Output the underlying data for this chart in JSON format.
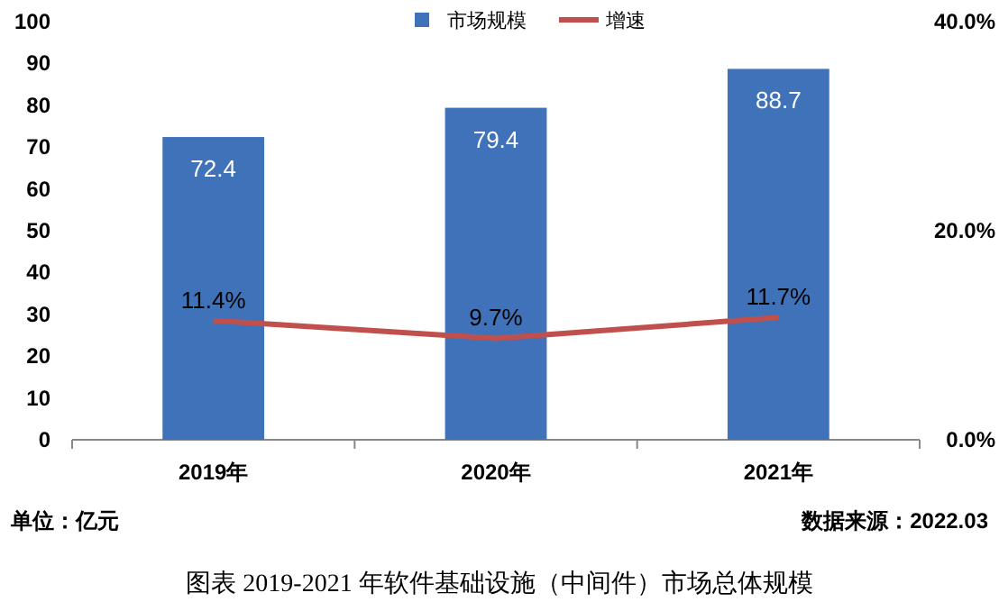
{
  "chart_data": {
    "type": "bar",
    "categories": [
      "2019年",
      "2020年",
      "2021年"
    ],
    "series": [
      {
        "name": "市场规模",
        "color": "#3f72b8",
        "values": [
          72.4,
          79.4,
          88.7
        ],
        "value_labels": [
          "72.4",
          "79.4",
          "88.7"
        ]
      },
      {
        "name": "增速",
        "type": "line",
        "axis": "y2",
        "color": "#c0504d",
        "values": [
          11.4,
          9.7,
          11.7
        ],
        "value_labels": [
          "11.4%",
          "9.7%",
          "11.7%"
        ]
      }
    ],
    "ylim": [
      0,
      100
    ],
    "yticks": [
      0,
      10,
      20,
      30,
      40,
      50,
      60,
      70,
      80,
      90,
      100
    ],
    "y2lim": [
      0,
      40
    ],
    "y2ticks": [
      {
        "value": 0,
        "label": "0.0%"
      },
      {
        "value": 20,
        "label": "20.0%"
      },
      {
        "value": 40,
        "label": "40.0%"
      }
    ],
    "legend": "top",
    "grid": false,
    "annotations": [
      "单位：亿元",
      "数据来源：2022.03",
      "图表 2019-2021 年软件基础设施（中间件）市场总体规模"
    ]
  }
}
